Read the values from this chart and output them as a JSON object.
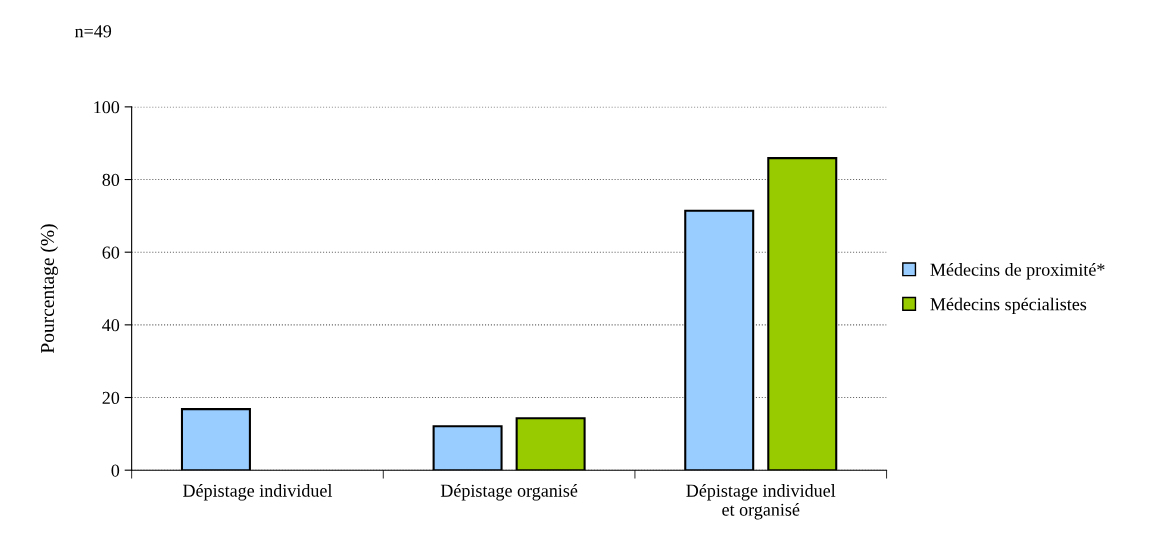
{
  "chart_data": {
    "type": "bar",
    "annotations": [
      "n=49"
    ],
    "ylabel": "Pourcentage (%)",
    "categories": [
      "Dépistage individuel",
      "Dépistage organisé",
      "Dépistage individuel\net organisé"
    ],
    "series": [
      {
        "name": "Médecins de proximité*",
        "color": "#99ccff",
        "values": [
          16.8,
          12.1,
          71.4
        ]
      },
      {
        "name": "Médecins spécialistes",
        "color": "#99cc00",
        "values": [
          null,
          14.3,
          85.9
        ]
      }
    ],
    "ylim": [
      0,
      100
    ],
    "yticks": [
      0,
      20,
      40,
      60,
      80,
      100
    ],
    "grid": "y",
    "legend": "right"
  }
}
